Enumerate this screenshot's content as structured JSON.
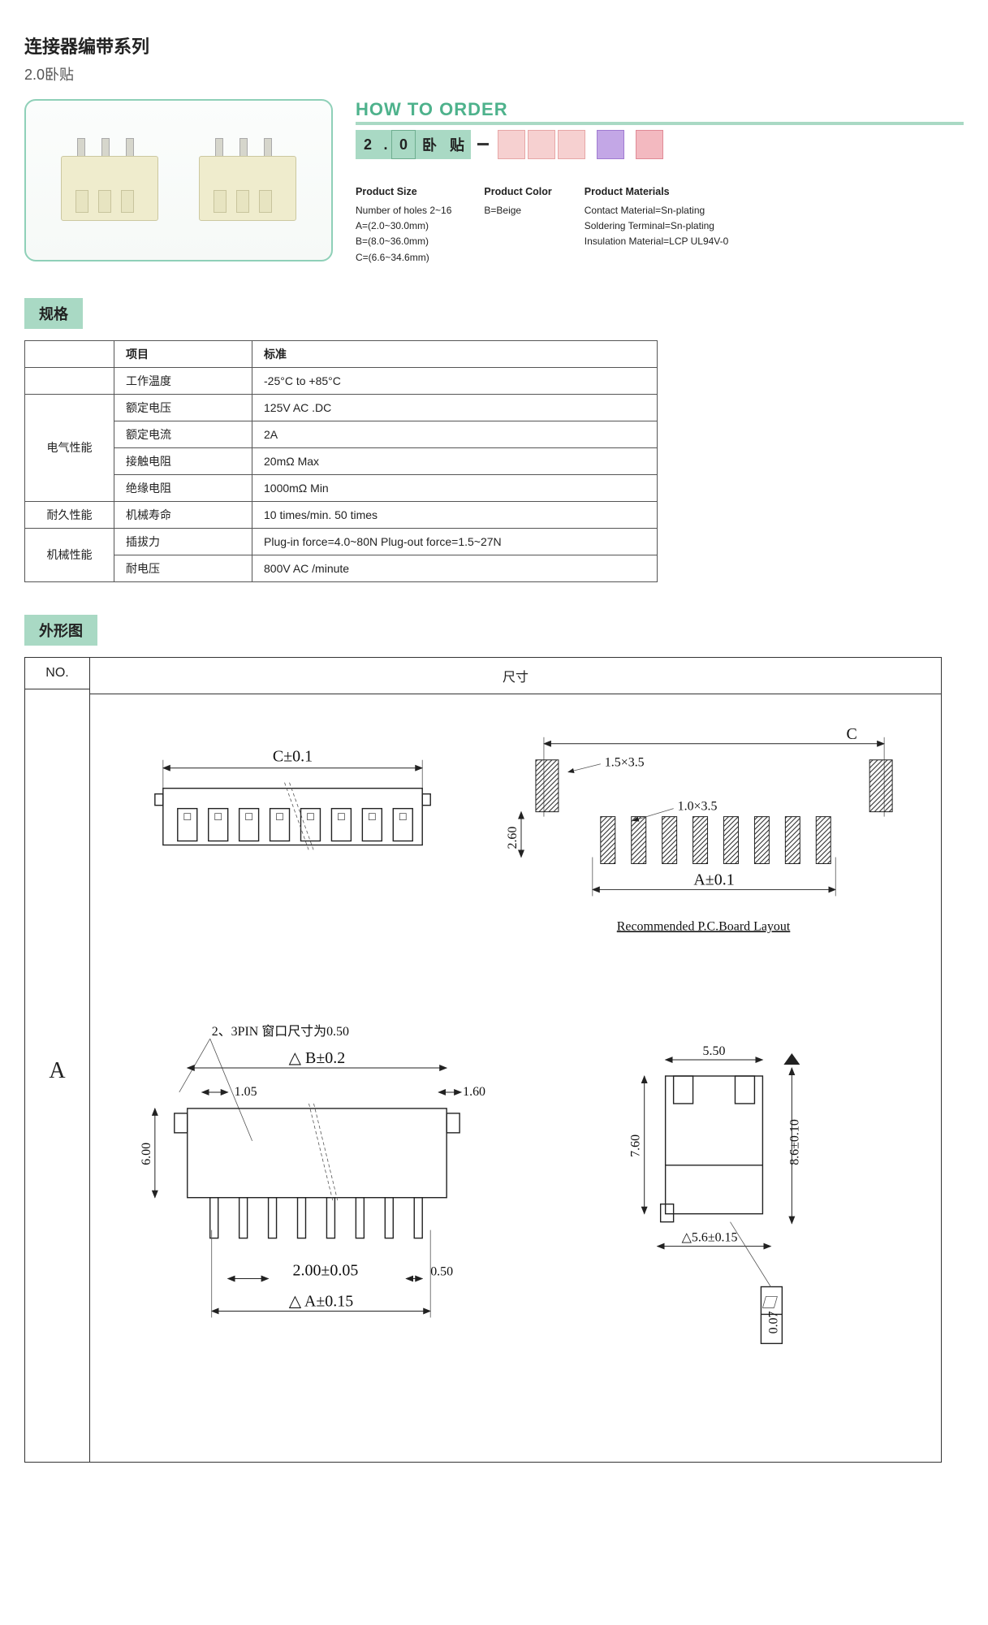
{
  "header": {
    "title_cn": "连接器编带系列",
    "subtitle": "2.0卧贴"
  },
  "order": {
    "title": "HOW TO ORDER",
    "boxes_green": [
      "2",
      ".",
      "0",
      "卧",
      "贴"
    ],
    "dash": "−",
    "size": {
      "heading": "Product Size",
      "lines": [
        "Number of holes 2~16",
        "A=(2.0~30.0mm)",
        "B=(8.0~36.0mm)",
        "C=(6.6~34.6mm)"
      ]
    },
    "color": {
      "heading": "Product Color",
      "lines": [
        "B=Beige"
      ]
    },
    "materials": {
      "heading": "Product Materials",
      "lines": [
        "Contact Material=Sn-plating",
        "Soldering Terminal=Sn-plating",
        "Insulation Material=LCP UL94V-0"
      ]
    }
  },
  "spec": {
    "tag": "规格",
    "head_item": "项目",
    "head_std": "标准",
    "rows": [
      {
        "g": "",
        "k": "工作温度",
        "v": "-25°C to +85°C"
      },
      {
        "g": "电气性能",
        "k": "额定电压",
        "v": "125V AC .DC"
      },
      {
        "g": "",
        "k": "额定电流",
        "v": "2A"
      },
      {
        "g": "",
        "k": "接触电阻",
        "v": "20mΩ Max"
      },
      {
        "g": "",
        "k": "绝缘电阻",
        "v": "1000mΩ Min"
      },
      {
        "g": "耐久性能",
        "k": "机械寿命",
        "v": "10 times/min. 50 times"
      },
      {
        "g": "机械性能",
        "k": "插拔力",
        "v": "Plug-in force=4.0~80N   Plug-out force=1.5~27N"
      },
      {
        "g": "",
        "k": "耐电压",
        "v": "800V AC /minute"
      }
    ],
    "groups": [
      {
        "label": "",
        "span": 1
      },
      {
        "label": "电气性能",
        "span": 4
      },
      {
        "label": "耐久性能",
        "span": 1
      },
      {
        "label": "机械性能",
        "span": 2
      }
    ]
  },
  "drawing": {
    "tag": "外形图",
    "no_head": "NO.",
    "dim_head": "尺寸",
    "no_val": "A",
    "labels": {
      "C_tol": "C±0.1",
      "note_23pin": "2、3PIN 窗口尺寸为0.50",
      "B_tol": "△ B±0.2",
      "d105": "1.05",
      "d160": "1.60",
      "d600": "6.00",
      "pitch": "2.00±0.05",
      "d050": "0.50",
      "A_tol": "△ A±0.15",
      "C_top": "C",
      "box15": "1.5×3.5",
      "box10": "1.0×3.5",
      "v260": "2.60",
      "A_pcb": "A±0.1",
      "pcb_note": "Recommended  P.C.Board  Layout",
      "d550": "5.50",
      "d760": "7.60",
      "d86": "8.6±0.10",
      "d56": "△5.6±0.15",
      "d007": "0.07"
    },
    "style": {
      "stroke": "#222222",
      "hatch_spacing": 6,
      "font_serif": "Times New Roman"
    }
  }
}
